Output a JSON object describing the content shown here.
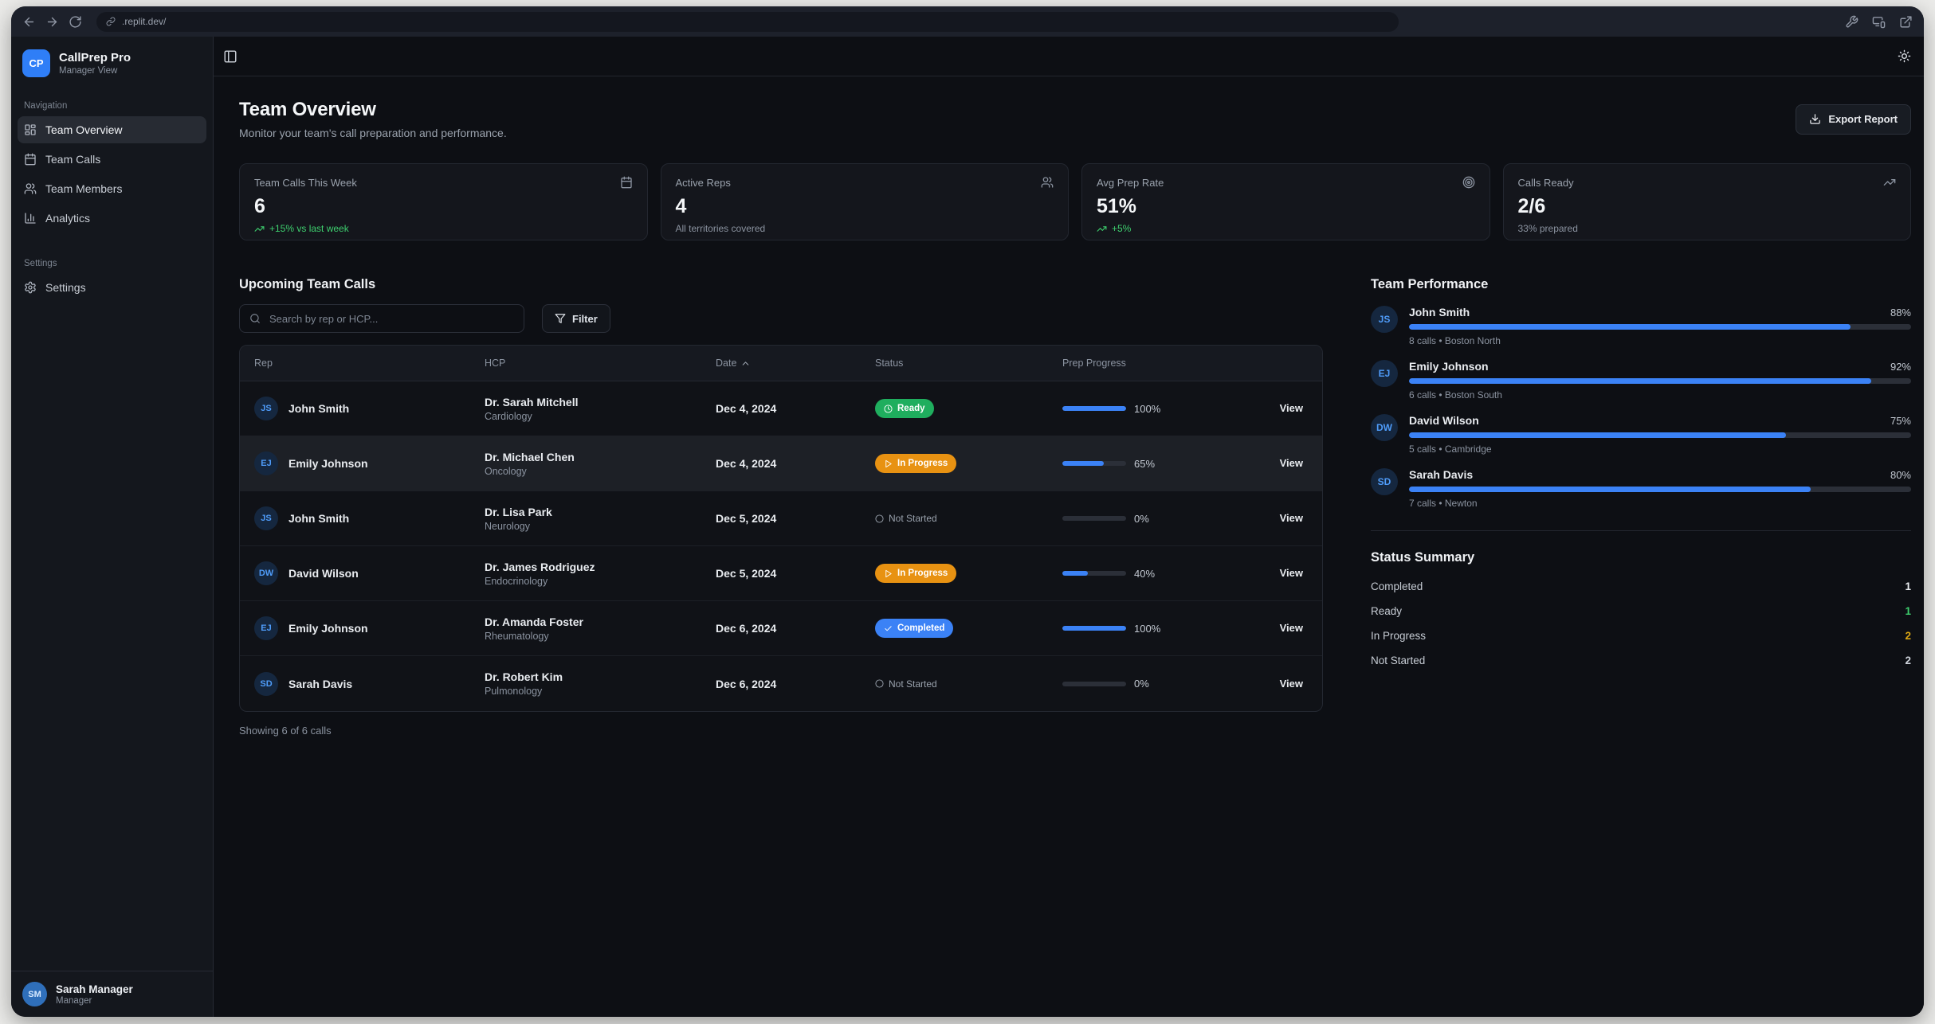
{
  "browser": {
    "url": ".replit.dev/"
  },
  "sidebar": {
    "logo": {
      "initials": "CP",
      "title": "CallPrep Pro",
      "subtitle": "Manager View"
    },
    "nav_section_label": "Navigation",
    "nav_items": [
      {
        "label": "Team Overview",
        "icon": "dashboard",
        "active": true
      },
      {
        "label": "Team Calls",
        "icon": "calendar",
        "active": false
      },
      {
        "label": "Team Members",
        "icon": "users",
        "active": false
      },
      {
        "label": "Analytics",
        "icon": "bar-chart",
        "active": false
      }
    ],
    "settings_section_label": "Settings",
    "settings_item": {
      "label": "Settings",
      "icon": "gear",
      "active": false
    },
    "user": {
      "initials": "SM",
      "name": "Sarah Manager",
      "role": "Manager"
    }
  },
  "header": {
    "title": "Team Overview",
    "subtitle": "Monitor your team's call preparation and performance.",
    "export_label": "Export Report"
  },
  "stats": [
    {
      "label": "Team Calls This Week",
      "icon": "calendar",
      "value": "6",
      "sub": "+15% vs last week",
      "sub_type": "positive"
    },
    {
      "label": "Active Reps",
      "icon": "users",
      "value": "4",
      "sub": "All territories covered",
      "sub_type": "neutral"
    },
    {
      "label": "Avg Prep Rate",
      "icon": "target",
      "value": "51%",
      "sub": "+5%",
      "sub_type": "positive"
    },
    {
      "label": "Calls Ready",
      "icon": "trending-up",
      "value": "2/6",
      "sub": "33% prepared",
      "sub_type": "neutral"
    }
  ],
  "calls": {
    "title": "Upcoming Team Calls",
    "search_placeholder": "Search by rep or HCP...",
    "filter_label": "Filter",
    "columns": [
      "Rep",
      "HCP",
      "Date",
      "Status",
      "Prep Progress"
    ],
    "view_label": "View",
    "rows": [
      {
        "rep_initials": "JS",
        "rep": "John Smith",
        "hcp": "Dr. Sarah Mitchell",
        "specialty": "Cardiology",
        "date": "Dec 4, 2024",
        "status": "Ready",
        "status_key": "ready",
        "status_icon": "clock",
        "progress": 100,
        "progress_label": "100%",
        "highlighted": false
      },
      {
        "rep_initials": "EJ",
        "rep": "Emily Johnson",
        "hcp": "Dr. Michael Chen",
        "specialty": "Oncology",
        "date": "Dec 4, 2024",
        "status": "In Progress",
        "status_key": "inprogress",
        "status_icon": "play",
        "progress": 65,
        "progress_label": "65%",
        "highlighted": true
      },
      {
        "rep_initials": "JS",
        "rep": "John Smith",
        "hcp": "Dr. Lisa Park",
        "specialty": "Neurology",
        "date": "Dec 5, 2024",
        "status": "Not Started",
        "status_key": "notstarted",
        "status_icon": "circle",
        "progress": 0,
        "progress_label": "0%",
        "highlighted": false
      },
      {
        "rep_initials": "DW",
        "rep": "David Wilson",
        "hcp": "Dr. James Rodriguez",
        "specialty": "Endocrinology",
        "date": "Dec 5, 2024",
        "status": "In Progress",
        "status_key": "inprogress",
        "status_icon": "play",
        "progress": 40,
        "progress_label": "40%",
        "highlighted": false
      },
      {
        "rep_initials": "EJ",
        "rep": "Emily Johnson",
        "hcp": "Dr. Amanda Foster",
        "specialty": "Rheumatology",
        "date": "Dec 6, 2024",
        "status": "Completed",
        "status_key": "completed",
        "status_icon": "check",
        "progress": 100,
        "progress_label": "100%",
        "highlighted": false
      },
      {
        "rep_initials": "SD",
        "rep": "Sarah Davis",
        "hcp": "Dr. Robert Kim",
        "specialty": "Pulmonology",
        "date": "Dec 6, 2024",
        "status": "Not Started",
        "status_key": "notstarted",
        "status_icon": "circle",
        "progress": 0,
        "progress_label": "0%",
        "highlighted": false
      }
    ],
    "footer": "Showing 6 of 6 calls"
  },
  "performance": {
    "title": "Team Performance",
    "members": [
      {
        "initials": "JS",
        "name": "John Smith",
        "percent": 88,
        "percent_label": "88%",
        "detail": "8 calls • Boston North"
      },
      {
        "initials": "EJ",
        "name": "Emily Johnson",
        "percent": 92,
        "percent_label": "92%",
        "detail": "6 calls • Boston South"
      },
      {
        "initials": "DW",
        "name": "David Wilson",
        "percent": 75,
        "percent_label": "75%",
        "detail": "5 calls • Cambridge"
      },
      {
        "initials": "SD",
        "name": "Sarah Davis",
        "percent": 80,
        "percent_label": "80%",
        "detail": "7 calls • Newton"
      }
    ]
  },
  "status_summary": {
    "title": "Status Summary",
    "rows": [
      {
        "label": "Completed",
        "value": "1",
        "key": "completed"
      },
      {
        "label": "Ready",
        "value": "1",
        "key": "ready"
      },
      {
        "label": "In Progress",
        "value": "2",
        "key": "inprogress"
      },
      {
        "label": "Not Started",
        "value": "2",
        "key": "notstarted"
      }
    ]
  },
  "colors": {
    "accent": "#3b82f6",
    "green": "#1fae5e",
    "orange": "#e89212",
    "completed_blue": "#3b82f6"
  }
}
